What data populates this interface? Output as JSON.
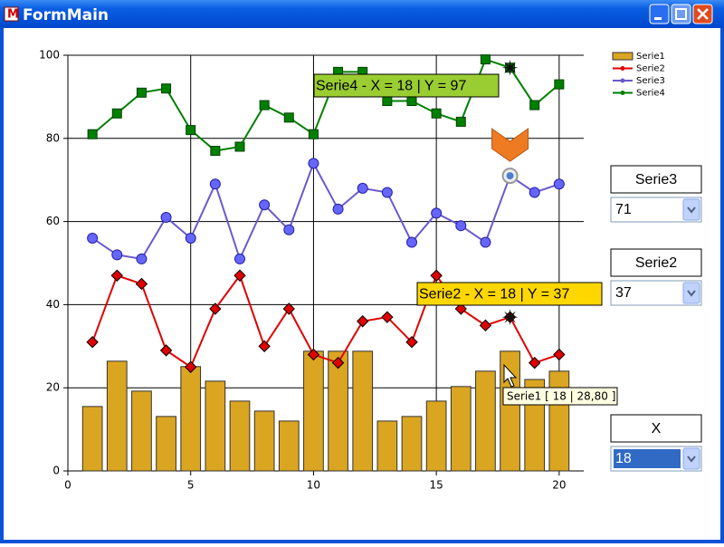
{
  "window": {
    "title": "FormMain"
  },
  "chart_data": {
    "type": "combo",
    "x": [
      1,
      2,
      3,
      4,
      5,
      6,
      7,
      8,
      9,
      10,
      11,
      12,
      13,
      14,
      15,
      16,
      17,
      18,
      19,
      20
    ],
    "series": [
      {
        "name": "Serie1",
        "type": "bar",
        "color": "#daa520",
        "values": [
          15.5,
          26.4,
          19.2,
          13.1,
          25.1,
          21.6,
          16.8,
          14.4,
          12.0,
          28.8,
          28.8,
          28.8,
          12.0,
          13.1,
          16.8,
          20.3,
          24.0,
          28.8,
          22.0,
          24.0
        ]
      },
      {
        "name": "Serie2",
        "type": "line",
        "marker": "diamond",
        "color": "#e00000",
        "values": [
          31,
          47,
          45,
          29,
          25,
          39,
          47,
          30,
          39,
          28,
          26,
          36,
          37,
          31,
          47,
          39,
          35,
          37,
          26,
          28
        ]
      },
      {
        "name": "Serie3",
        "type": "line",
        "marker": "circle",
        "color": "#6a5acd",
        "values": [
          56,
          52,
          51,
          61,
          56,
          69,
          51,
          64,
          58,
          74,
          63,
          68,
          67,
          55,
          62,
          59,
          55,
          71,
          67,
          69
        ]
      },
      {
        "name": "Serie4",
        "type": "line",
        "marker": "square",
        "color": "#008000",
        "values": [
          81,
          86,
          91,
          92,
          82,
          77,
          78,
          88,
          85,
          81,
          96,
          96,
          89,
          89,
          86,
          84,
          99,
          97,
          88,
          93
        ]
      }
    ],
    "xlim": [
      0,
      21
    ],
    "xticks": [
      0,
      5,
      10,
      15,
      20
    ],
    "ylim": [
      0,
      100
    ],
    "yticks": [
      0,
      20,
      40,
      60,
      80,
      100
    ],
    "grid": true,
    "legend": "top-right",
    "annotations": [
      {
        "text": "Serie4 - X = 18 | Y = 97",
        "color": "#9acd32"
      },
      {
        "text": "Serie2 - X = 18 | Y = 37",
        "color": "#ffd700"
      }
    ],
    "tooltip": "Serie1 [ 18 | 28,80 ]"
  },
  "controls": [
    {
      "label": "Serie3",
      "value": "71"
    },
    {
      "label": "Serie2",
      "value": "37"
    },
    {
      "label": "X",
      "value": "18"
    }
  ]
}
